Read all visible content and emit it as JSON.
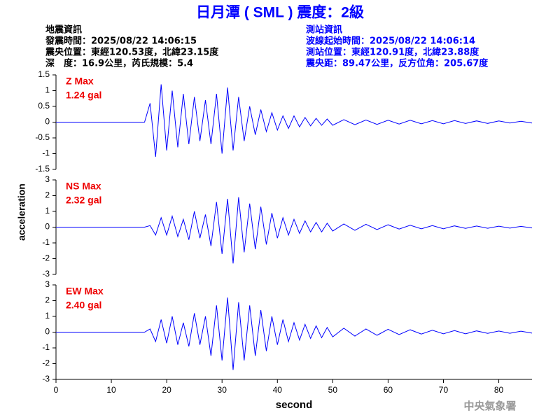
{
  "header": {
    "title": "日月潭 ( SML ) 震度：2級",
    "left": [
      "地震資訊",
      "發震時間：2025/08/22 14:06:15",
      "震央位置：東經120.53度，北緯23.15度",
      "深　度：16.9公里，芮氏規模：5.4"
    ],
    "right": [
      "測站資訊",
      "波線起始時間：2025/08/22 14:06:14",
      "測站位置：東經120.91度，北緯23.88度",
      "震央距：89.47公里，反方位角：205.67度"
    ]
  },
  "ylabel": "acceleration",
  "footer": "中央氣象署",
  "chart_data": [
    {
      "type": "line",
      "annotations": [
        "Z Max",
        "1.24 gal"
      ],
      "color": "#0000ff",
      "xlim": [
        0,
        86
      ],
      "ylim": [
        -1.5,
        1.5
      ],
      "yticks": [
        -1.5,
        -1,
        -0.5,
        0,
        0.5,
        1,
        1.5
      ],
      "x": [
        0,
        16,
        17,
        18,
        19,
        20,
        21,
        22,
        23,
        24,
        25,
        26,
        27,
        28,
        29,
        30,
        31,
        32,
        33,
        34,
        35,
        36,
        37,
        38,
        39,
        40,
        41,
        42,
        43,
        44,
        45,
        46,
        47,
        48,
        49,
        50,
        52,
        54,
        56,
        58,
        60,
        62,
        64,
        66,
        68,
        70,
        72,
        74,
        76,
        78,
        80,
        82,
        84,
        86
      ],
      "values": [
        0,
        0,
        0.6,
        -1.1,
        1.2,
        -0.9,
        1.0,
        -0.8,
        0.9,
        -0.7,
        0.8,
        -0.6,
        0.7,
        -0.7,
        0.9,
        -1.0,
        1.1,
        -0.9,
        0.8,
        -0.6,
        0.5,
        -0.4,
        0.4,
        -0.3,
        0.3,
        -0.25,
        0.2,
        -0.2,
        0.2,
        -0.15,
        0.15,
        -0.12,
        0.12,
        -0.1,
        0.1,
        -0.1,
        0.08,
        -0.08,
        0.07,
        -0.07,
        0.06,
        -0.06,
        0.06,
        -0.05,
        0.05,
        -0.05,
        0.05,
        -0.04,
        0.04,
        -0.04,
        0.04,
        -0.03,
        0.03,
        -0.03
      ]
    },
    {
      "type": "line",
      "annotations": [
        "NS Max",
        "2.32 gal"
      ],
      "color": "#0000ff",
      "xlim": [
        0,
        86
      ],
      "ylim": [
        -3,
        3
      ],
      "yticks": [
        -3,
        -2,
        -1,
        0,
        1,
        2,
        3
      ],
      "x": [
        0,
        16,
        17,
        18,
        19,
        20,
        21,
        22,
        23,
        24,
        25,
        26,
        27,
        28,
        29,
        30,
        31,
        32,
        33,
        34,
        35,
        36,
        37,
        38,
        39,
        40,
        41,
        42,
        43,
        44,
        45,
        46,
        47,
        48,
        49,
        50,
        52,
        54,
        56,
        58,
        60,
        62,
        64,
        66,
        68,
        70,
        72,
        74,
        76,
        78,
        80,
        82,
        84,
        86
      ],
      "values": [
        0,
        0,
        0.1,
        -0.5,
        0.6,
        -0.5,
        0.7,
        -0.6,
        0.5,
        -0.8,
        1.0,
        -0.7,
        0.8,
        -1.2,
        1.6,
        -1.7,
        1.8,
        -2.3,
        1.9,
        -1.6,
        1.5,
        -1.4,
        1.3,
        -1.1,
        0.9,
        -0.7,
        0.6,
        -0.5,
        0.5,
        -0.4,
        0.4,
        -0.3,
        0.3,
        -0.3,
        0.25,
        -0.25,
        0.2,
        -0.2,
        0.18,
        -0.15,
        0.15,
        -0.12,
        0.12,
        -0.1,
        0.1,
        -0.1,
        0.08,
        -0.08,
        0.07,
        -0.07,
        0.06,
        -0.06,
        0.05,
        -0.05
      ]
    },
    {
      "type": "line",
      "annotations": [
        "EW Max",
        "2.40 gal"
      ],
      "color": "#0000ff",
      "xlabel": "second",
      "xlim": [
        0,
        86
      ],
      "ylim": [
        -3,
        3
      ],
      "yticks": [
        -3,
        -2,
        -1,
        0,
        1,
        2,
        3
      ],
      "xticks": [
        0,
        10,
        20,
        30,
        40,
        50,
        60,
        70,
        80
      ],
      "x": [
        0,
        16,
        17,
        18,
        19,
        20,
        21,
        22,
        23,
        24,
        25,
        26,
        27,
        28,
        29,
        30,
        31,
        32,
        33,
        34,
        35,
        36,
        37,
        38,
        39,
        40,
        41,
        42,
        43,
        44,
        45,
        46,
        47,
        48,
        49,
        50,
        52,
        54,
        56,
        58,
        60,
        62,
        64,
        66,
        68,
        70,
        72,
        74,
        76,
        78,
        80,
        82,
        84,
        86
      ],
      "values": [
        0,
        0,
        0.2,
        -0.6,
        0.8,
        -0.7,
        1.0,
        -0.8,
        0.6,
        -0.9,
        1.2,
        -0.8,
        1.0,
        -1.5,
        1.7,
        -1.8,
        2.2,
        -2.4,
        1.9,
        -1.8,
        1.7,
        -1.5,
        1.4,
        -1.2,
        1.0,
        -0.8,
        0.8,
        -0.6,
        0.6,
        -0.5,
        0.5,
        -0.4,
        0.4,
        -0.35,
        0.3,
        -0.3,
        0.25,
        -0.25,
        0.2,
        -0.2,
        0.18,
        -0.15,
        0.15,
        -0.12,
        0.12,
        -0.1,
        0.1,
        -0.1,
        0.08,
        -0.08,
        0.07,
        -0.07,
        0.06,
        -0.06
      ]
    }
  ]
}
